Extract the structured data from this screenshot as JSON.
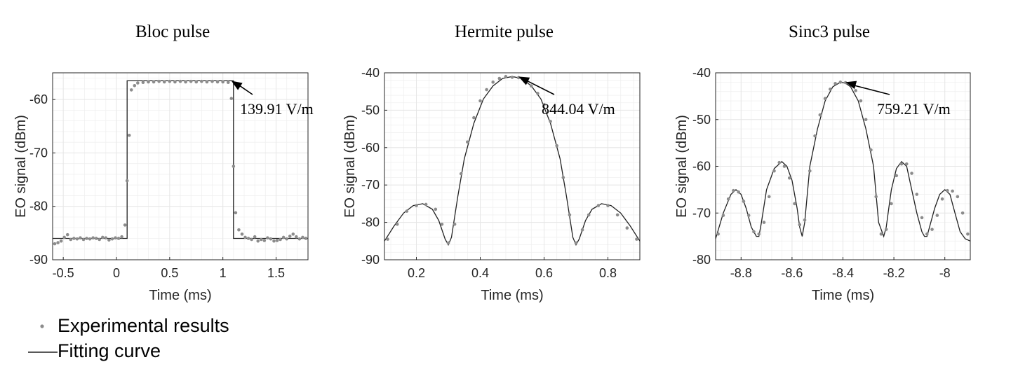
{
  "legend": {
    "experimental": "Experimental results",
    "fitting": "Fitting curve"
  },
  "colors": {
    "points": "#8c8c8c",
    "curve": "#222222",
    "grid": "#e6e6e6",
    "axis": "#262626"
  },
  "chart_data": [
    {
      "type": "scatter",
      "title": "Bloc pulse",
      "xlabel": "Time (ms)",
      "ylabel": "EO signal (dBm)",
      "xlim": [
        -0.6,
        1.8
      ],
      "ylim": [
        -90,
        -55
      ],
      "xticks": [
        -0.5,
        0,
        0.5,
        1,
        1.5
      ],
      "yticks": [
        -90,
        -80,
        -70,
        -60
      ],
      "grid": true,
      "annotation": {
        "text": "139.91 V/m",
        "x": 1.08,
        "y": -56.5
      },
      "fit": {
        "x": [
          -0.6,
          0.1,
          0.1,
          1.1,
          1.1,
          1.8
        ],
        "y": [
          -86,
          -86,
          -56.5,
          -56.5,
          -86,
          -86
        ]
      },
      "series": [
        {
          "name": "Experimental results",
          "x": [
            -0.58,
            -0.55,
            -0.52,
            -0.49,
            -0.46,
            -0.43,
            -0.4,
            -0.37,
            -0.34,
            -0.31,
            -0.28,
            -0.25,
            -0.22,
            -0.19,
            -0.16,
            -0.13,
            -0.1,
            -0.07,
            -0.04,
            -0.01,
            0.02,
            0.05,
            0.08,
            0.1,
            0.12,
            0.14,
            0.17,
            0.2,
            0.25,
            0.3,
            0.35,
            0.4,
            0.45,
            0.5,
            0.55,
            0.6,
            0.65,
            0.7,
            0.75,
            0.8,
            0.85,
            0.9,
            0.95,
            1.0,
            1.05,
            1.08,
            1.1,
            1.12,
            1.15,
            1.18,
            1.21,
            1.24,
            1.27,
            1.3,
            1.33,
            1.36,
            1.39,
            1.42,
            1.45,
            1.48,
            1.51,
            1.54,
            1.57,
            1.6,
            1.63,
            1.66,
            1.69,
            1.72,
            1.75,
            1.78
          ],
          "y": [
            -87,
            -86.8,
            -86.5,
            -85.8,
            -85.3,
            -86.2,
            -86,
            -86.1,
            -85.9,
            -86.2,
            -86,
            -86.1,
            -85.9,
            -86,
            -86.2,
            -85.8,
            -85.9,
            -86.3,
            -86.1,
            -85.9,
            -86,
            -85.7,
            -83.5,
            -75.2,
            -66.7,
            -58.2,
            -57.4,
            -56.9,
            -56.8,
            -56.7,
            -56.7,
            -56.6,
            -56.7,
            -56.6,
            -56.7,
            -56.6,
            -56.7,
            -56.6,
            -56.7,
            -56.6,
            -56.7,
            -56.6,
            -56.7,
            -56.7,
            -56.8,
            -59.8,
            -72.5,
            -81.2,
            -84.4,
            -85.2,
            -85.8,
            -86,
            -86.2,
            -85.7,
            -86.5,
            -86.2,
            -86.4,
            -85.9,
            -86.1,
            -86.5,
            -86.4,
            -86.2,
            -85.8,
            -86.1,
            -85.6,
            -85.2,
            -85.7,
            -86.1,
            -85.8,
            -86
          ]
        }
      ]
    },
    {
      "type": "scatter",
      "title": "Hermite pulse",
      "xlabel": "Time (ms)",
      "ylabel": "EO signal (dBm)",
      "xlim": [
        0.1,
        0.9
      ],
      "ylim": [
        -90,
        -40
      ],
      "xticks": [
        0.2,
        0.4,
        0.6,
        0.8
      ],
      "yticks": [
        -90,
        -80,
        -70,
        -60,
        -50,
        -40
      ],
      "grid": true,
      "annotation": {
        "text": "844.04 V/m",
        "x": 0.52,
        "y": -41
      },
      "fit": {
        "x": [
          0.1,
          0.13,
          0.16,
          0.19,
          0.22,
          0.25,
          0.27,
          0.29,
          0.3,
          0.31,
          0.33,
          0.35,
          0.38,
          0.41,
          0.44,
          0.47,
          0.5,
          0.53,
          0.56,
          0.59,
          0.62,
          0.65,
          0.67,
          0.69,
          0.7,
          0.71,
          0.73,
          0.75,
          0.78,
          0.81,
          0.84,
          0.87,
          0.9
        ],
        "y": [
          -85,
          -81,
          -77.5,
          -75.5,
          -75,
          -76.5,
          -79.5,
          -84.5,
          -86,
          -84,
          -73,
          -63,
          -53.5,
          -47,
          -43.5,
          -41.5,
          -41,
          -41.5,
          -43.5,
          -47,
          -53.5,
          -63,
          -73,
          -84,
          -86,
          -84.5,
          -79.5,
          -76.5,
          -75,
          -75.5,
          -77.5,
          -81,
          -85
        ]
      },
      "series": [
        {
          "name": "Experimental results",
          "x": [
            0.11,
            0.14,
            0.17,
            0.2,
            0.23,
            0.26,
            0.28,
            0.3,
            0.32,
            0.34,
            0.36,
            0.38,
            0.4,
            0.42,
            0.44,
            0.46,
            0.48,
            0.5,
            0.52,
            0.54,
            0.56,
            0.58,
            0.6,
            0.62,
            0.64,
            0.66,
            0.68,
            0.7,
            0.72,
            0.74,
            0.77,
            0.8,
            0.83,
            0.86,
            0.89
          ],
          "y": [
            -84.5,
            -80.5,
            -77,
            -75.5,
            -75.2,
            -76.5,
            -80.5,
            -85.5,
            -80.5,
            -67,
            -58.5,
            -52,
            -47.5,
            -44.5,
            -42.5,
            -41.5,
            -41,
            -41.2,
            -41.3,
            -42.2,
            -43.5,
            -45.5,
            -48.5,
            -53,
            -59.5,
            -68,
            -78,
            -85.5,
            -82,
            -78,
            -75.5,
            -75.5,
            -78,
            -81.5,
            -84.5
          ]
        }
      ]
    },
    {
      "type": "scatter",
      "title": "Sinc3 pulse",
      "xlabel": "Time (ms)",
      "ylabel": "EO signal (dBm)",
      "xlim": [
        -8.9,
        -7.9
      ],
      "ylim": [
        -80,
        -40
      ],
      "xticks": [
        -8.8,
        -8.6,
        -8.4,
        -8.2,
        -8
      ],
      "yticks": [
        -80,
        -70,
        -60,
        -50,
        -40
      ],
      "grid": true,
      "annotation": {
        "text": "759.21 V/m",
        "x": -8.39,
        "y": -42
      },
      "fit": {
        "x": [
          -8.9,
          -8.87,
          -8.84,
          -8.82,
          -8.8,
          -8.78,
          -8.76,
          -8.74,
          -8.73,
          -8.72,
          -8.7,
          -8.67,
          -8.64,
          -8.62,
          -8.6,
          -8.58,
          -8.57,
          -8.56,
          -8.55,
          -8.53,
          -8.5,
          -8.47,
          -8.44,
          -8.41,
          -8.39,
          -8.37,
          -8.34,
          -8.31,
          -8.28,
          -8.26,
          -8.24,
          -8.23,
          -8.22,
          -8.21,
          -8.19,
          -8.17,
          -8.15,
          -8.13,
          -8.11,
          -8.09,
          -8.08,
          -8.07,
          -8.06,
          -8.04,
          -8.02,
          -8.0,
          -7.98,
          -7.96,
          -7.94,
          -7.92,
          -7.9
        ],
        "y": [
          -75.5,
          -70,
          -66,
          -65,
          -66,
          -69,
          -73,
          -75,
          -75,
          -72,
          -65,
          -60.5,
          -59,
          -60,
          -63,
          -69,
          -73,
          -75,
          -72,
          -60,
          -52,
          -46,
          -43,
          -42,
          -42.2,
          -43,
          -46,
          -52,
          -60,
          -72,
          -75,
          -73,
          -69,
          -65,
          -60.5,
          -59,
          -60,
          -65,
          -70,
          -74,
          -75,
          -75,
          -73,
          -69,
          -66,
          -65,
          -66,
          -70,
          -74,
          -75.5,
          -76
        ]
      },
      "series": [
        {
          "name": "Experimental results",
          "x": [
            -8.89,
            -8.87,
            -8.85,
            -8.83,
            -8.81,
            -8.79,
            -8.77,
            -8.75,
            -8.73,
            -8.71,
            -8.69,
            -8.67,
            -8.65,
            -8.63,
            -8.61,
            -8.59,
            -8.57,
            -8.55,
            -8.53,
            -8.51,
            -8.49,
            -8.47,
            -8.45,
            -8.43,
            -8.41,
            -8.39,
            -8.37,
            -8.35,
            -8.33,
            -8.31,
            -8.29,
            -8.27,
            -8.25,
            -8.23,
            -8.21,
            -8.19,
            -8.17,
            -8.15,
            -8.13,
            -8.11,
            -8.09,
            -8.07,
            -8.05,
            -8.03,
            -8.01,
            -7.99,
            -7.97,
            -7.95,
            -7.93,
            -7.91
          ],
          "y": [
            -74.5,
            -70.5,
            -67,
            -65.2,
            -65.5,
            -67.5,
            -70.5,
            -74,
            -74.5,
            -72,
            -66.5,
            -61,
            -59.2,
            -60,
            -62.5,
            -68,
            -72.5,
            -71.5,
            -61,
            -53.5,
            -49,
            -45.5,
            -43.5,
            -42.3,
            -42,
            -42.1,
            -42.5,
            -43.8,
            -46,
            -50,
            -56.5,
            -66.5,
            -74.5,
            -73.5,
            -68,
            -62,
            -59.5,
            -59.5,
            -61.5,
            -66,
            -71,
            -74.5,
            -73.5,
            -70.5,
            -67,
            -65.2,
            -65.3,
            -66.5,
            -70,
            -74.5
          ]
        }
      ]
    }
  ]
}
